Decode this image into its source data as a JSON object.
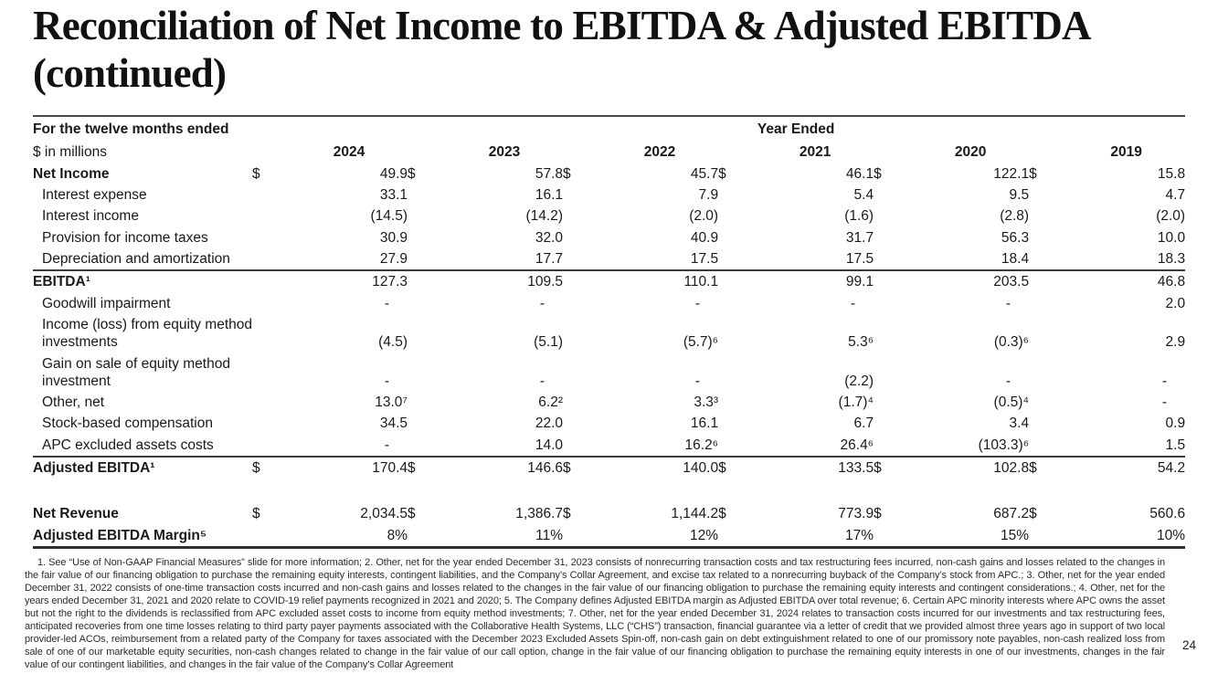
{
  "page": {
    "title": "Reconciliation of Net Income to EBITDA & Adjusted EBITDA (continued)",
    "page_number": "24"
  },
  "table": {
    "currency_symbol": "$",
    "header": {
      "left_label": "For the twelve months ended",
      "sub_label": "$ in millions",
      "year_ended_label": "Year Ended",
      "years": [
        "2024",
        "2023",
        "2022",
        "2021",
        "2020",
        "2019"
      ]
    },
    "rows": [
      {
        "label": "Net Income",
        "bold": true,
        "dollar": true,
        "values": [
          "49.9",
          "57.8",
          "45.7",
          "46.1",
          "122.1",
          "15.8"
        ]
      },
      {
        "label": "Interest expense",
        "indent": true,
        "values": [
          "33.1",
          "16.1",
          "7.9",
          "5.4",
          "9.5",
          "4.7"
        ]
      },
      {
        "label": "Interest income",
        "indent": true,
        "values": [
          "(14.5)",
          "(14.2)",
          "(2.0)",
          "(1.6)",
          "(2.8)",
          "(2.0)"
        ]
      },
      {
        "label": "Provision for income taxes",
        "indent": true,
        "values": [
          "30.9",
          "32.0",
          "40.9",
          "31.7",
          "56.3",
          "10.0"
        ]
      },
      {
        "label": "Depreciation and amortization",
        "indent": true,
        "values": [
          "27.9",
          "17.7",
          "17.5",
          "17.5",
          "18.4",
          "18.3"
        ]
      },
      {
        "label": "EBITDA¹",
        "bold": true,
        "rule_above": true,
        "values": [
          "127.3",
          "109.5",
          "110.1",
          "99.1",
          "203.5",
          "46.8"
        ]
      },
      {
        "label": "Goodwill impairment",
        "indent": true,
        "values": [
          "-",
          "-",
          "-",
          "-",
          "-",
          "2.0"
        ]
      },
      {
        "label": "Income (loss) from equity method investments",
        "indent": true,
        "values": [
          "(4.5)",
          "(5.1)",
          "(5.7)⁶",
          "5.3⁶",
          "(0.3)⁶",
          "2.9"
        ]
      },
      {
        "label": "Gain on sale of equity method investment",
        "indent": true,
        "values": [
          "-",
          "-",
          "-",
          "(2.2)",
          "-",
          "-"
        ]
      },
      {
        "label": "Other, net",
        "indent": true,
        "values": [
          "13.0⁷",
          "6.2²",
          "3.3³",
          "(1.7)⁴",
          "(0.5)⁴",
          "-"
        ]
      },
      {
        "label": "Stock-based compensation",
        "indent": true,
        "values": [
          "34.5",
          "22.0",
          "16.1",
          "6.7",
          "3.4",
          "0.9"
        ]
      },
      {
        "label": "APC excluded assets costs",
        "indent": true,
        "values": [
          "-",
          "14.0",
          "16.2⁶",
          "26.4⁶",
          "(103.3)⁶",
          "1.5"
        ]
      },
      {
        "label": "Adjusted EBITDA¹",
        "bold": true,
        "dollar": true,
        "rule_above": true,
        "values": [
          "170.4",
          "146.6",
          "140.0",
          "133.5",
          "102.8",
          "54.2"
        ]
      },
      {
        "spacer": true
      },
      {
        "label": "Net Revenue",
        "bold": true,
        "dollar": true,
        "values": [
          "2,034.5",
          "1,386.7",
          "1,144.2",
          "773.9",
          "687.2",
          "560.6"
        ]
      },
      {
        "label": "Adjusted EBITDA Margin⁵",
        "bold": true,
        "rule_below": true,
        "values": [
          "8%",
          "11%",
          "12%",
          "17%",
          "15%",
          "10%"
        ]
      }
    ]
  },
  "footnotes": "1. See “Use of Non-GAAP Financial Measures” slide for more information; 2. Other, net for the year ended December 31, 2023 consists of nonrecurring transaction costs and tax restructuring fees incurred, non-cash gains and losses related to the changes in the fair value of our financing obligation to purchase the remaining equity interests, contingent liabilities, and the Company’s Collar Agreement, and excise tax related to a nonrecurring buyback of the Company’s stock from APC.; 3. Other, net for the year ended December 31, 2022 consists of one-time transaction costs incurred and non-cash gains and losses related to the changes in the fair value of our financing obligation to purchase the remaining equity interests and contingent considerations.; 4. Other, net for the years ended December 31, 2021 and 2020 relate to COVID-19 relief payments recognized in 2021 and 2020; 5. The Company defines Adjusted EBITDA margin as Adjusted EBITDA over total revenue; 6. Certain APC minority interests where APC owns the asset but not the right to the dividends is reclassified from APC excluded asset costs to income from equity method investments; 7. Other, net for the year ended December 31, 2024 relates to transaction costs incurred for our investments and tax restructuring fees, anticipated recoveries from one time losses relating to third party payer payments associated with the Collaborative Health Systems, LLC (“CHS”) transaction, financial guarantee via a letter of credit that we provided almost three years ago in support of two local provider-led ACOs, reimbursement from a related party of the Company for taxes associated with the December 2023 Excluded Assets Spin-off, non-cash gain on debt extinguishment related to one of our promissory note payables, non-cash realized loss from sale of one of our marketable equity securities, non-cash changes related to change in the fair value of our call option, change in the fair value of our financing obligation to purchase the remaining equity interests in one of our investments, changes in the fair value of our contingent liabilities, and changes in the fair value of the Company’s Collar Agreement"
}
